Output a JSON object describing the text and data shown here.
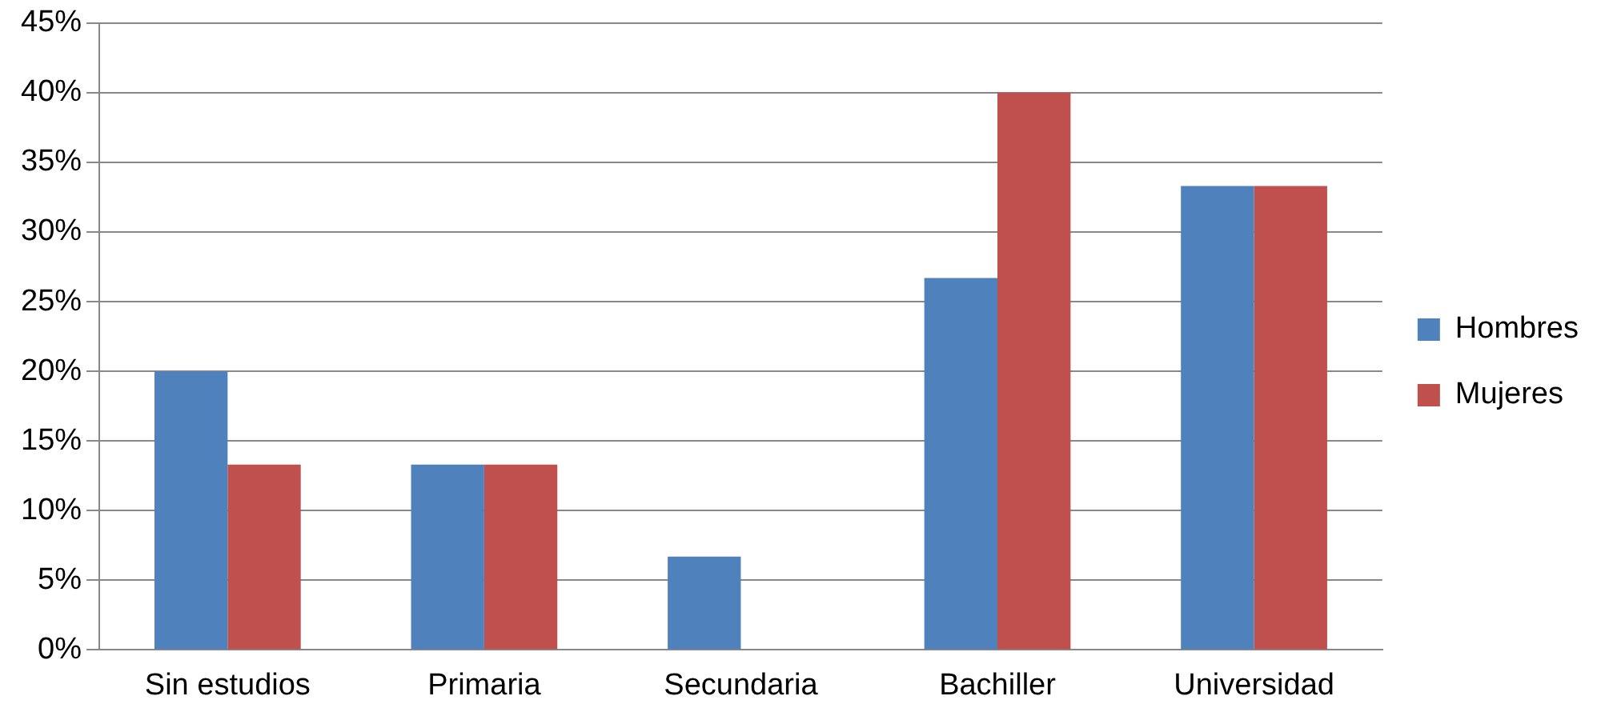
{
  "chart_data": {
    "type": "bar",
    "categories": [
      "Sin estudios",
      "Primaria",
      "Secundaria",
      "Bachiller",
      "Universidad"
    ],
    "series": [
      {
        "name": "Hombres",
        "color": "#4f81bd",
        "values": [
          20,
          13.3,
          6.7,
          26.7,
          33.3
        ]
      },
      {
        "name": "Mujeres",
        "color": "#c0504d",
        "values": [
          13.3,
          13.3,
          0,
          40,
          33.3
        ]
      }
    ],
    "ylim": [
      0,
      45
    ],
    "yticks": [
      {
        "value": 0,
        "label": "0%"
      },
      {
        "value": 5,
        "label": "5%"
      },
      {
        "value": 10,
        "label": "10%"
      },
      {
        "value": 15,
        "label": "15%"
      },
      {
        "value": 20,
        "label": "20%"
      },
      {
        "value": 25,
        "label": "25%"
      },
      {
        "value": 30,
        "label": "30%"
      },
      {
        "value": 35,
        "label": "35%"
      },
      {
        "value": 40,
        "label": "40%"
      },
      {
        "value": 45,
        "label": "45%"
      }
    ],
    "grid": "y",
    "legend": "right"
  }
}
